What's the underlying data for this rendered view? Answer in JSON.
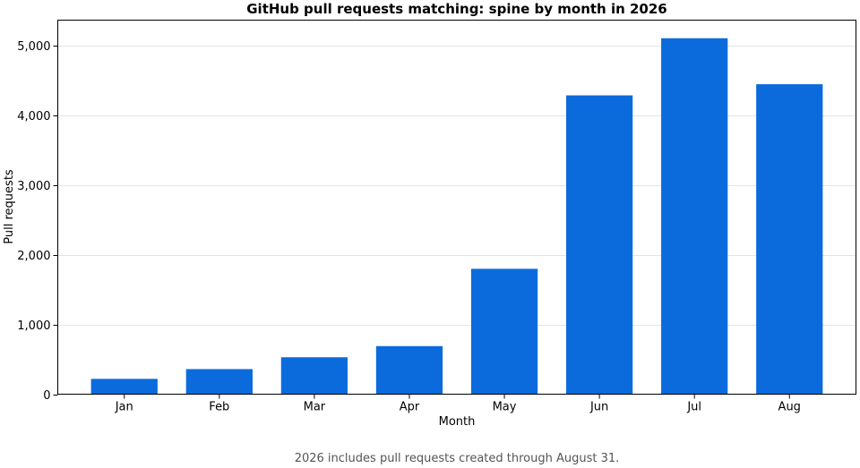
{
  "chart_data": {
    "type": "bar",
    "title": "GitHub pull requests matching: spine by month in 2026",
    "xlabel": "Month",
    "ylabel": "Pull requests",
    "categories": [
      "Jan",
      "Feb",
      "Mar",
      "Apr",
      "May",
      "Jun",
      "Jul",
      "Aug"
    ],
    "values": [
      220,
      360,
      530,
      690,
      1800,
      4290,
      5110,
      4450
    ],
    "ylim": [
      0,
      5370
    ],
    "yticks": [
      0,
      1000,
      2000,
      3000,
      4000,
      5000
    ],
    "ytick_labels": [
      "0",
      "1,000",
      "2,000",
      "3,000",
      "4,000",
      "5,000"
    ],
    "grid": "y",
    "bar_color": "#0b6bdc",
    "footnote": "2026 includes pull requests created through August 31."
  }
}
